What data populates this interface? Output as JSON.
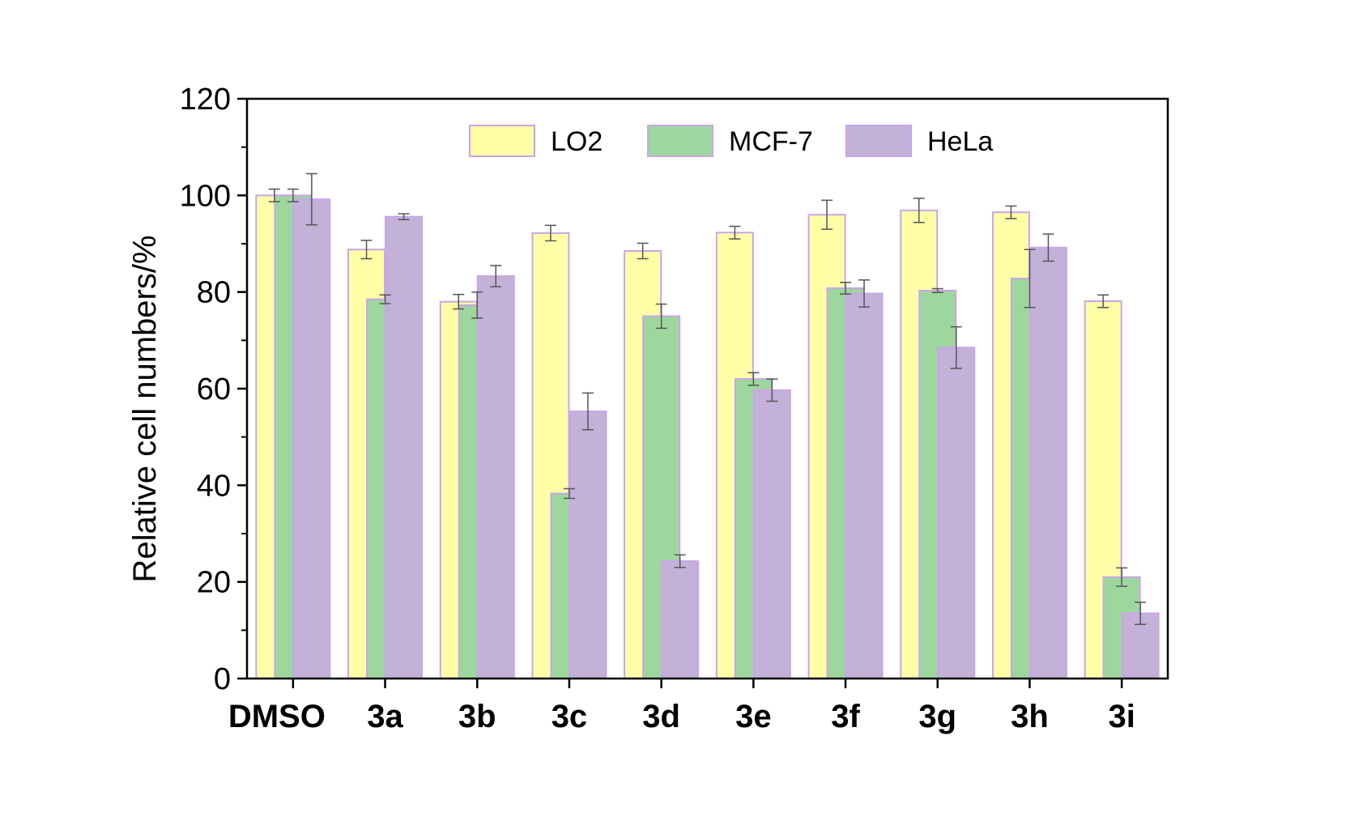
{
  "chart_data": {
    "type": "bar",
    "title": "",
    "xlabel": "",
    "ylabel": "Relative cell numbers/%",
    "ylim": [
      0,
      120
    ],
    "yticks": [
      0,
      20,
      40,
      60,
      80,
      100,
      120
    ],
    "grid": false,
    "legend_position": "top",
    "categories": [
      "DMSO",
      "3a",
      "3b",
      "3c",
      "3d",
      "3e",
      "3f",
      "3g",
      "3h",
      "3i"
    ],
    "series": [
      {
        "name": "LO2",
        "color": "#FFFFA8",
        "values": [
          100,
          88.8,
          78.0,
          92.2,
          88.5,
          92.3,
          96.0,
          96.9,
          96.5,
          78.1
        ],
        "errors": [
          1.3,
          1.9,
          1.5,
          1.6,
          1.6,
          1.3,
          3.0,
          2.5,
          1.3,
          1.3
        ]
      },
      {
        "name": "MCF-7",
        "color": "#9DD79D",
        "values": [
          100,
          78.5,
          77.3,
          38.3,
          75.0,
          62.0,
          80.8,
          80.3,
          82.8,
          21.0
        ],
        "errors": [
          1.3,
          0.9,
          2.7,
          1.0,
          2.5,
          1.3,
          1.2,
          0.4,
          6.0,
          1.9
        ]
      },
      {
        "name": "HeLa",
        "color": "#C3B1D8",
        "values": [
          99.2,
          95.6,
          83.3,
          55.3,
          24.3,
          59.7,
          79.7,
          68.5,
          89.2,
          13.5
        ],
        "errors": [
          5.3,
          0.6,
          2.2,
          3.8,
          1.3,
          2.3,
          2.8,
          4.3,
          2.8,
          2.3
        ]
      }
    ]
  }
}
